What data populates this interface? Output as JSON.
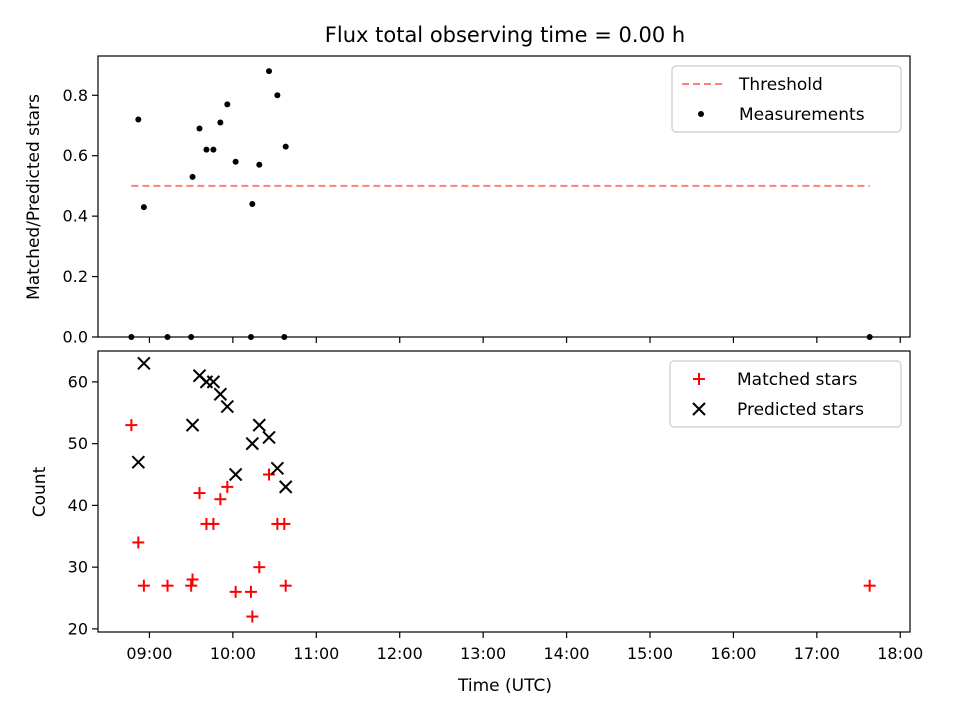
{
  "chart_data": [
    {
      "type": "scatter",
      "title": "Flux total observing time = 0.00 h",
      "xlabel": "",
      "ylabel": "Matched/Predicted stars",
      "ylim": [
        0,
        0.93
      ],
      "xlim": [
        "08:23",
        "18:07"
      ],
      "yticks": [
        0.0,
        0.2,
        0.4,
        0.6,
        0.8
      ],
      "ytick_labels": [
        "0.0",
        "0.2",
        "0.4",
        "0.6",
        "0.8"
      ],
      "grid": false,
      "legend_position": "top-right",
      "threshold": {
        "name": "Threshold",
        "value": 0.5,
        "x_range": [
          "08:47",
          "17:38"
        ],
        "color": "#ff7f7f",
        "style": "dashed"
      },
      "series": [
        {
          "name": "Measurements",
          "color": "#000000",
          "marker": "dot",
          "x": [
            "08:47",
            "08:52",
            "08:56",
            "09:13",
            "09:30",
            "09:31",
            "09:36",
            "09:41",
            "09:46",
            "09:51",
            "09:56",
            "10:02",
            "10:13",
            "10:14",
            "10:19",
            "10:26",
            "10:32",
            "10:37",
            "10:38",
            "17:38"
          ],
          "y": [
            0.0,
            0.72,
            0.43,
            0.0,
            0.0,
            0.53,
            0.69,
            0.62,
            0.62,
            0.71,
            0.77,
            0.58,
            0.0,
            0.44,
            0.57,
            0.88,
            0.8,
            0.0,
            0.63,
            0.0
          ]
        }
      ]
    },
    {
      "type": "scatter",
      "title": "",
      "xlabel": "Time (UTC)",
      "ylabel": "Count",
      "ylim": [
        19.5,
        65
      ],
      "xlim": [
        "08:23",
        "18:07"
      ],
      "yticks": [
        20,
        30,
        40,
        50,
        60
      ],
      "ytick_labels": [
        "20",
        "30",
        "40",
        "50",
        "60"
      ],
      "xticks": [
        "09:00",
        "10:00",
        "11:00",
        "12:00",
        "13:00",
        "14:00",
        "15:00",
        "16:00",
        "17:00",
        "18:00"
      ],
      "grid": false,
      "legend_position": "top-right",
      "series": [
        {
          "name": "Matched stars",
          "color": "#ff0000",
          "marker": "plus",
          "x": [
            "08:47",
            "08:52",
            "08:56",
            "09:13",
            "09:30",
            "09:31",
            "09:36",
            "09:41",
            "09:46",
            "09:51",
            "09:56",
            "10:02",
            "10:13",
            "10:14",
            "10:19",
            "10:26",
            "10:32",
            "10:37",
            "10:38",
            "17:38"
          ],
          "y": [
            53,
            34,
            27,
            27,
            27,
            28,
            42,
            37,
            37,
            41,
            43,
            26,
            26,
            22,
            30,
            45,
            37,
            37,
            27,
            27
          ]
        },
        {
          "name": "Predicted stars",
          "color": "#000000",
          "marker": "x",
          "x": [
            "08:52",
            "08:56",
            "09:31",
            "09:36",
            "09:41",
            "09:46",
            "09:51",
            "09:56",
            "10:02",
            "10:14",
            "10:19",
            "10:26",
            "10:32",
            "10:38"
          ],
          "y": [
            47,
            63,
            53,
            61,
            60,
            60,
            58,
            56,
            45,
            50,
            53,
            51,
            46,
            43
          ]
        }
      ]
    }
  ]
}
